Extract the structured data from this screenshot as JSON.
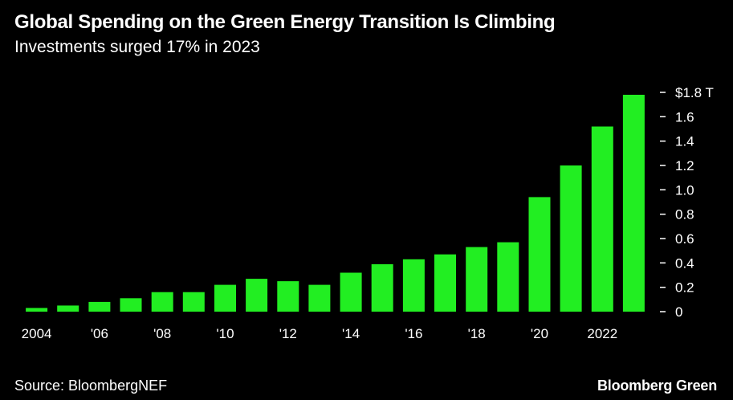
{
  "chart_data": {
    "type": "bar",
    "title": "Global Spending on the Green Energy Transition Is Climbing",
    "subtitle": "Investments surged 17% in 2023",
    "categories": [
      "2004",
      "2005",
      "2006",
      "2007",
      "2008",
      "2009",
      "2010",
      "2011",
      "2012",
      "2013",
      "2014",
      "2015",
      "2016",
      "2017",
      "2018",
      "2019",
      "2020",
      "2021",
      "2022",
      "2023"
    ],
    "values": [
      0.03,
      0.05,
      0.08,
      0.11,
      0.16,
      0.16,
      0.22,
      0.27,
      0.25,
      0.22,
      0.32,
      0.39,
      0.43,
      0.47,
      0.53,
      0.57,
      0.94,
      1.2,
      1.52,
      1.78
    ],
    "x_tick_labels": [
      {
        "category": "2004",
        "label": "2004"
      },
      {
        "category": "2006",
        "label": "'06"
      },
      {
        "category": "2008",
        "label": "'08"
      },
      {
        "category": "2010",
        "label": "'10"
      },
      {
        "category": "2012",
        "label": "'12"
      },
      {
        "category": "2014",
        "label": "'14"
      },
      {
        "category": "2016",
        "label": "'16"
      },
      {
        "category": "2018",
        "label": "'18"
      },
      {
        "category": "2020",
        "label": "'20"
      },
      {
        "category": "2022",
        "label": "2022"
      }
    ],
    "y_ticks": [
      {
        "value": 1.8,
        "label": "$1.8 T"
      },
      {
        "value": 1.6,
        "label": "1.6"
      },
      {
        "value": 1.4,
        "label": "1.4"
      },
      {
        "value": 1.2,
        "label": "1.2"
      },
      {
        "value": 1.0,
        "label": "1.0"
      },
      {
        "value": 0.8,
        "label": "0.8"
      },
      {
        "value": 0.6,
        "label": "0.6"
      },
      {
        "value": 0.4,
        "label": "0.4"
      },
      {
        "value": 0.2,
        "label": "0.2"
      },
      {
        "value": 0,
        "label": "0"
      }
    ],
    "ylim": [
      0,
      1.8
    ],
    "y_axis_side": "right",
    "grid": false,
    "bar_color": "#22ee22",
    "background_color": "#000000",
    "text_color": "#ffffff"
  },
  "footer": {
    "source": "Source: BloombergNEF",
    "brand": "Bloomberg Green"
  }
}
